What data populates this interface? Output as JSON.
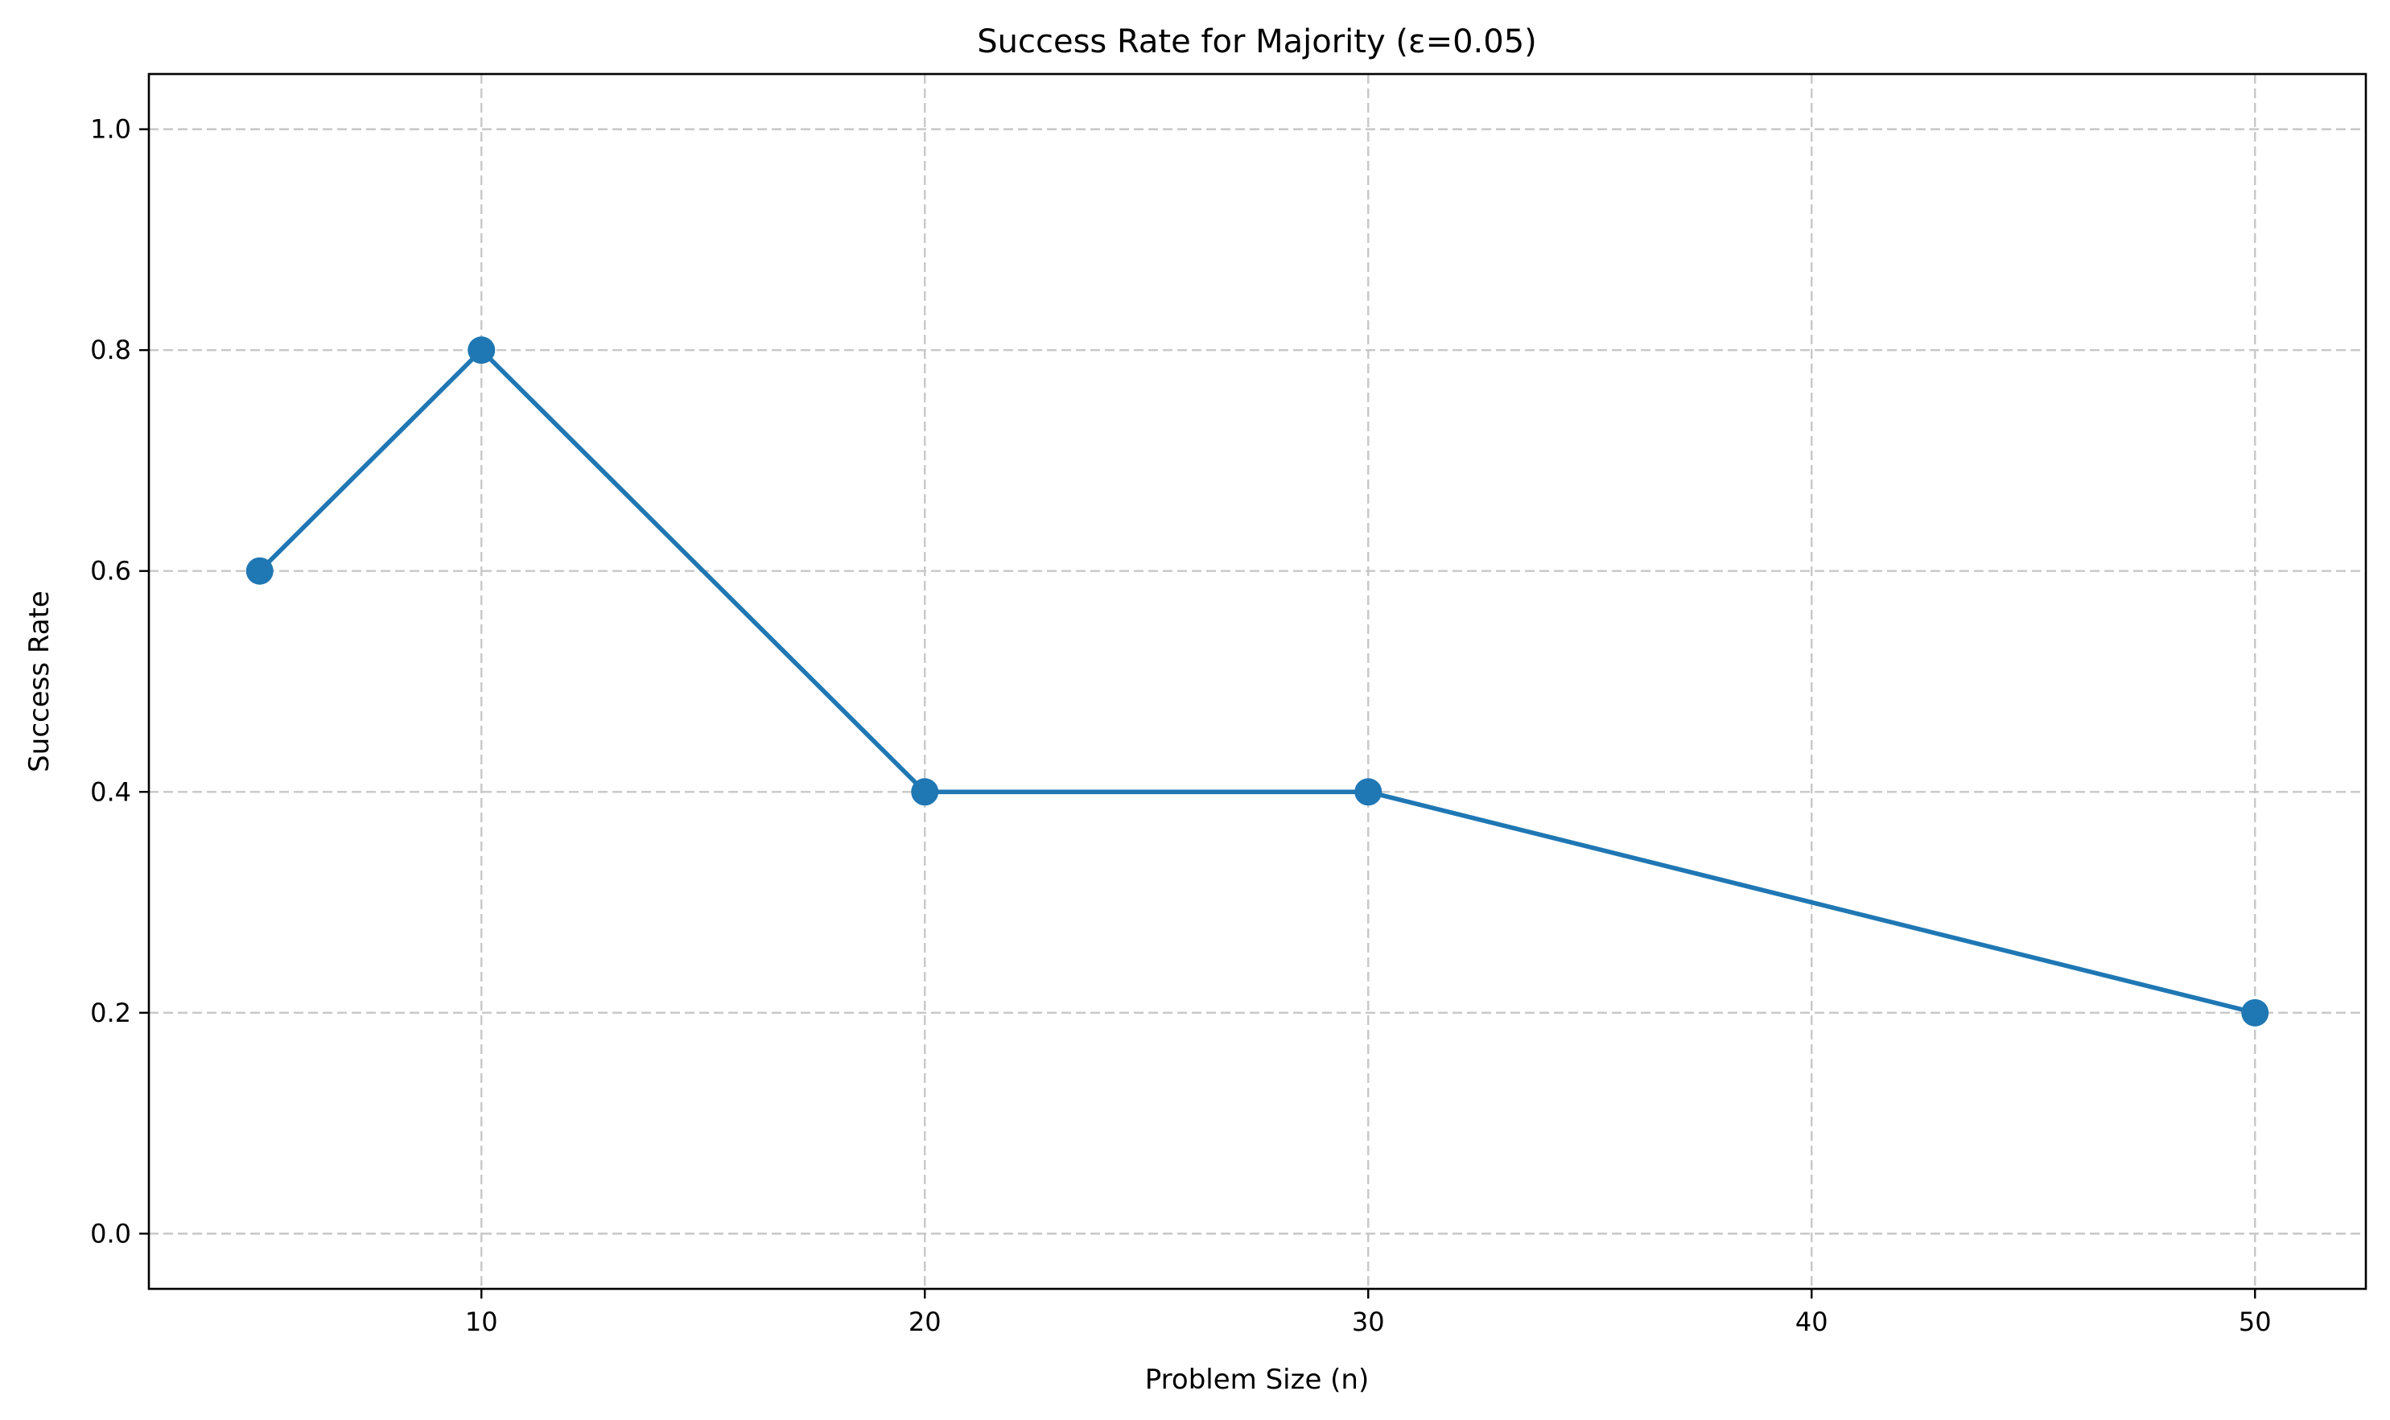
{
  "chart_data": {
    "type": "line",
    "title": "Success Rate for Majority (ε=0.05)",
    "xlabel": "Problem Size (n)",
    "ylabel": "Success Rate",
    "xlim": [
      2.5,
      52.5
    ],
    "ylim": [
      -0.05,
      1.05
    ],
    "xticks": [
      10,
      20,
      30,
      40,
      50
    ],
    "yticks": [
      0.0,
      0.2,
      0.4,
      0.6,
      0.8,
      1.0
    ],
    "xtick_labels": [
      "10",
      "20",
      "30",
      "40",
      "50"
    ],
    "ytick_labels": [
      "0.0",
      "0.2",
      "0.4",
      "0.6",
      "0.8",
      "1.0"
    ],
    "grid": true,
    "legend": "none",
    "series": [
      {
        "color": "#1f77b4",
        "marker": "circle",
        "x": [
          5,
          10,
          20,
          30,
          50
        ],
        "y": [
          0.6,
          0.8,
          0.4,
          0.4,
          0.2
        ]
      }
    ]
  }
}
